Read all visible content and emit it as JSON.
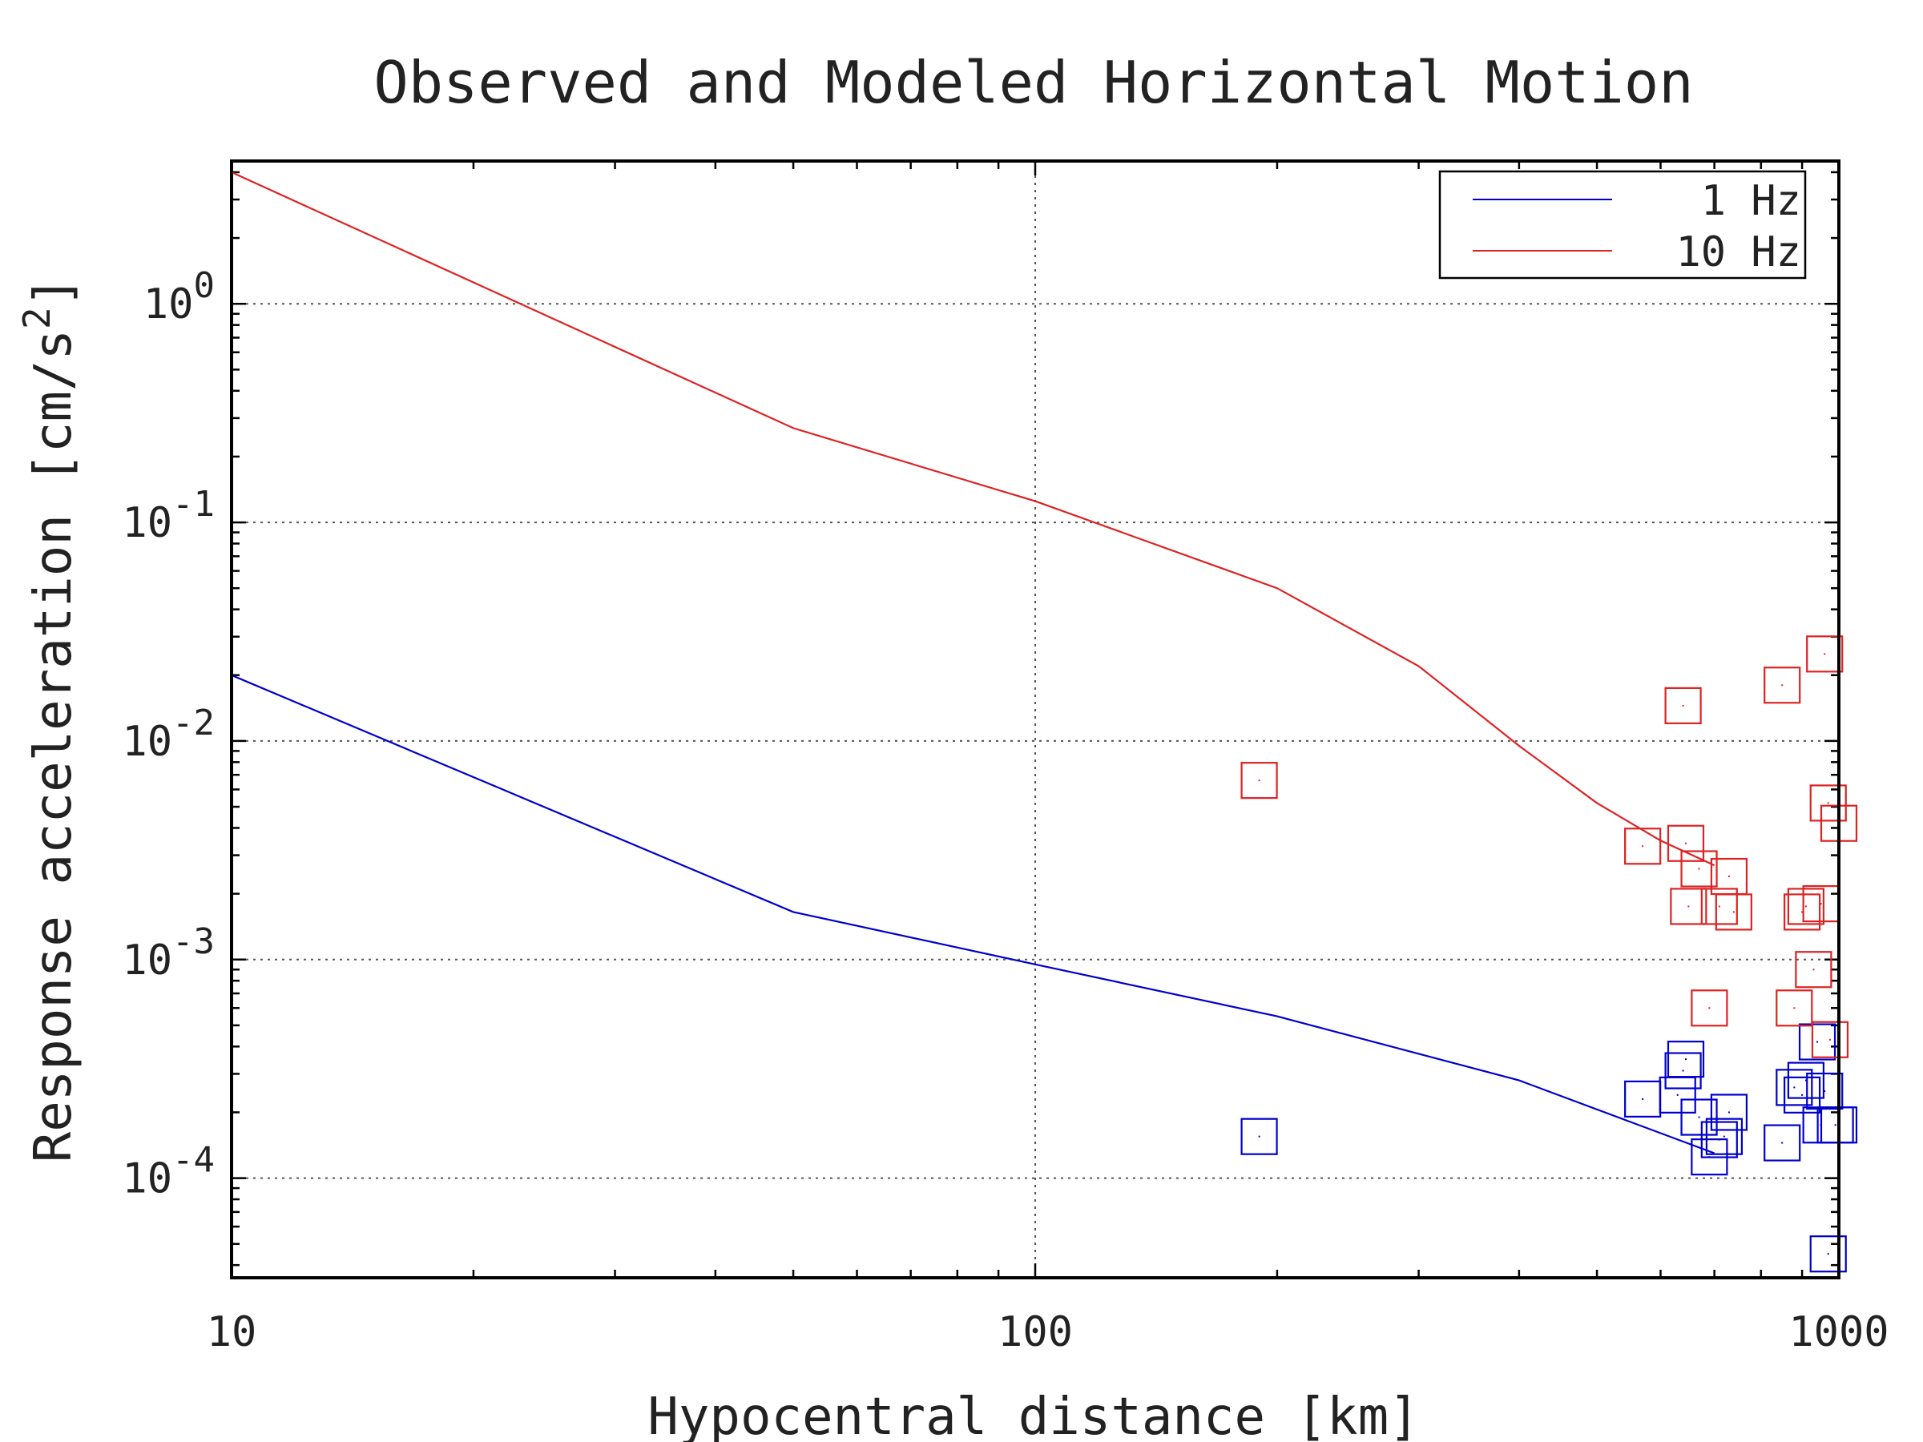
{
  "chart_data": {
    "type": "scatter",
    "title": "Observed and Modeled Horizontal Motion",
    "xlabel": "Hypocentral distance [km]",
    "ylabel": "Response acceleration [cm/s",
    "ylabel_superscript": "2",
    "ylabel_suffix": "]",
    "x_scale": "log",
    "y_scale": "log",
    "xlim": [
      10,
      1000
    ],
    "ylim": [
      3.5e-05,
      4.5
    ],
    "x_ticks": [
      {
        "value": 10,
        "label": "10"
      },
      {
        "value": 100,
        "label": "100"
      },
      {
        "value": 1000,
        "label": "1000"
      }
    ],
    "y_ticks": [
      {
        "value": 1,
        "base": "10",
        "exp": "0"
      },
      {
        "value": 0.1,
        "base": "10",
        "exp": "-1"
      },
      {
        "value": 0.01,
        "base": "10",
        "exp": "-2"
      },
      {
        "value": 0.001,
        "base": "10",
        "exp": "-3"
      },
      {
        "value": 0.0001,
        "base": "10",
        "exp": "-4"
      }
    ],
    "grid": true,
    "legend_position": "top-right",
    "series": [
      {
        "name": "1 Hz",
        "color": "#0000cc",
        "line": [
          [
            10,
            0.02
          ],
          [
            50,
            0.00165
          ],
          [
            100,
            0.00095
          ],
          [
            200,
            0.00055
          ],
          [
            400,
            0.00028
          ],
          [
            700,
            0.00013
          ]
        ],
        "points": [
          [
            190,
            0.000155
          ],
          [
            570,
            0.00023
          ],
          [
            630,
            0.00024
          ],
          [
            640,
            0.00031
          ],
          [
            645,
            0.00035
          ],
          [
            670,
            0.00019
          ],
          [
            690,
            0.000125
          ],
          [
            710,
            0.00015
          ],
          [
            720,
            0.000155
          ],
          [
            730,
            0.0002
          ],
          [
            850,
            0.000145
          ],
          [
            880,
            0.00026
          ],
          [
            900,
            0.00024
          ],
          [
            910,
            0.00028
          ],
          [
            940,
            0.00042
          ],
          [
            950,
            0.000175
          ],
          [
            960,
            0.00025
          ],
          [
            970,
            4.5e-05
          ],
          [
            990,
            0.000175
          ],
          [
            1000,
            0.000175
          ]
        ]
      },
      {
        "name": "10 Hz",
        "color": "#dd2222",
        "line": [
          [
            10,
            4.0
          ],
          [
            50,
            0.27
          ],
          [
            100,
            0.125
          ],
          [
            200,
            0.05
          ],
          [
            300,
            0.022
          ],
          [
            400,
            0.0095
          ],
          [
            500,
            0.0052
          ],
          [
            600,
            0.0035
          ],
          [
            700,
            0.0027
          ]
        ],
        "points": [
          [
            190,
            0.0066
          ],
          [
            570,
            0.0033
          ],
          [
            640,
            0.0145
          ],
          [
            645,
            0.0034
          ],
          [
            650,
            0.00175
          ],
          [
            670,
            0.0026
          ],
          [
            690,
            0.0006
          ],
          [
            710,
            0.00175
          ],
          [
            730,
            0.0024
          ],
          [
            740,
            0.00165
          ],
          [
            850,
            0.018
          ],
          [
            880,
            0.0006
          ],
          [
            900,
            0.00165
          ],
          [
            910,
            0.00175
          ],
          [
            930,
            0.0009
          ],
          [
            950,
            0.0018
          ],
          [
            960,
            0.025
          ],
          [
            970,
            0.0052
          ],
          [
            975,
            0.00043
          ],
          [
            1000,
            0.0042
          ]
        ]
      }
    ]
  }
}
